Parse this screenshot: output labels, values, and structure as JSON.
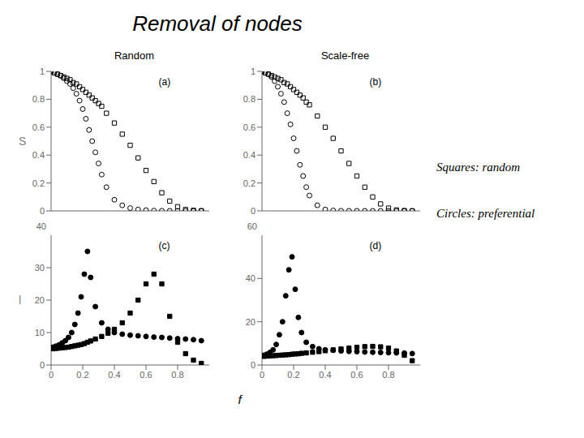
{
  "title": "Removal of nodes",
  "xlabel": "f",
  "annotations": [
    "Squares: random",
    "Circles: preferential"
  ],
  "chart_data": [
    {
      "type": "scatter",
      "title": "Random",
      "ylabel": "S",
      "annotations": [
        "(a)"
      ],
      "grid": false,
      "tick_labels": "y",
      "xlim": [
        0,
        1.0
      ],
      "xticks": [
        0.0,
        0.2,
        0.4,
        0.6,
        0.8
      ],
      "ylim": [
        0,
        1.0
      ],
      "yticks": [
        0.0,
        0.2,
        0.4,
        0.6,
        0.8,
        1.0
      ],
      "x": [
        0.0,
        0.02,
        0.04,
        0.06,
        0.08,
        0.1,
        0.12,
        0.14,
        0.16,
        0.18,
        0.2,
        0.22,
        0.24,
        0.26,
        0.28,
        0.3,
        0.32,
        0.35,
        0.4,
        0.45,
        0.5,
        0.55,
        0.6,
        0.65,
        0.7,
        0.75,
        0.8,
        0.85,
        0.9,
        0.95
      ],
      "series": [
        {
          "marker": "open_circle",
          "color": "#000000",
          "values": [
            1.0,
            0.99,
            0.98,
            0.97,
            0.95,
            0.93,
            0.91,
            0.88,
            0.84,
            0.79,
            0.73,
            0.66,
            0.58,
            0.5,
            0.42,
            0.34,
            0.26,
            0.17,
            0.08,
            0.04,
            0.02,
            0.01,
            0.005,
            0.002,
            0.001,
            0.0005,
            0.0002,
            0.0001,
            5e-05,
            2e-05
          ]
        },
        {
          "marker": "open_square",
          "color": "#000000",
          "values": [
            1.0,
            0.99,
            0.98,
            0.97,
            0.96,
            0.95,
            0.94,
            0.92,
            0.91,
            0.89,
            0.87,
            0.85,
            0.83,
            0.81,
            0.79,
            0.77,
            0.75,
            0.7,
            0.63,
            0.55,
            0.47,
            0.38,
            0.29,
            0.21,
            0.13,
            0.07,
            0.03,
            0.01,
            0.004,
            0.001
          ]
        }
      ]
    },
    {
      "type": "scatter",
      "title": "Scale-free",
      "annotations": [
        "(b)"
      ],
      "grid": false,
      "tick_labels": "y",
      "xlim": [
        0,
        1.0
      ],
      "xticks": [
        0.0,
        0.2,
        0.4,
        0.6,
        0.8
      ],
      "ylim": [
        0,
        1.0
      ],
      "yticks": [
        0.0,
        0.2,
        0.4,
        0.6,
        0.8,
        1.0
      ],
      "x": [
        0.0,
        0.02,
        0.04,
        0.06,
        0.08,
        0.1,
        0.12,
        0.14,
        0.16,
        0.18,
        0.2,
        0.22,
        0.24,
        0.26,
        0.28,
        0.3,
        0.35,
        0.4,
        0.45,
        0.5,
        0.55,
        0.6,
        0.65,
        0.7,
        0.75,
        0.8,
        0.85,
        0.9,
        0.95
      ],
      "series": [
        {
          "marker": "open_circle",
          "color": "#000000",
          "values": [
            1.0,
            0.99,
            0.98,
            0.96,
            0.93,
            0.89,
            0.84,
            0.78,
            0.7,
            0.62,
            0.52,
            0.43,
            0.33,
            0.25,
            0.17,
            0.11,
            0.04,
            0.01,
            0.003,
            0.001,
            0.0005,
            0.0002,
            0.0001,
            5e-05,
            2e-05,
            1e-05,
            5e-06,
            2e-06,
            1e-06
          ]
        },
        {
          "marker": "open_square",
          "color": "#000000",
          "values": [
            1.0,
            0.99,
            0.98,
            0.97,
            0.96,
            0.95,
            0.94,
            0.92,
            0.91,
            0.89,
            0.87,
            0.85,
            0.83,
            0.81,
            0.78,
            0.76,
            0.68,
            0.6,
            0.52,
            0.43,
            0.34,
            0.25,
            0.17,
            0.1,
            0.05,
            0.02,
            0.007,
            0.002,
            0.0005
          ]
        }
      ]
    },
    {
      "type": "scatter",
      "ylabel": "l",
      "annotations": [
        "(c)",
        "40"
      ],
      "grid": false,
      "xlim": [
        0,
        1.0
      ],
      "xticks": [
        0.0,
        0.2,
        0.4,
        0.6,
        0.8
      ],
      "ylim": [
        0,
        40
      ],
      "yticks": [
        0,
        10,
        20,
        30
      ],
      "x": [
        0.01,
        0.03,
        0.05,
        0.07,
        0.09,
        0.11,
        0.13,
        0.15,
        0.17,
        0.19,
        0.21,
        0.23,
        0.25,
        0.28,
        0.32,
        0.36,
        0.4,
        0.45,
        0.5,
        0.55,
        0.6,
        0.65,
        0.7,
        0.75,
        0.8,
        0.85,
        0.9,
        0.95
      ],
      "series": [
        {
          "marker": "circle",
          "color": "#000000",
          "values": [
            5.5,
            5.8,
            6.2,
            6.8,
            7.5,
            8.5,
            10.0,
            12.5,
            16.0,
            21.0,
            28.0,
            35.0,
            27.0,
            18.0,
            13.0,
            11.0,
            10.0,
            9.5,
            9.2,
            9.0,
            8.8,
            8.6,
            8.5,
            8.3,
            8.1,
            8.0,
            7.8,
            7.5
          ]
        },
        {
          "marker": "square",
          "color": "#000000",
          "values": [
            5.0,
            5.1,
            5.2,
            5.3,
            5.4,
            5.5,
            5.7,
            5.9,
            6.1,
            6.3,
            6.6,
            7.0,
            7.4,
            8.0,
            8.8,
            9.8,
            11.0,
            13.0,
            16.0,
            20.0,
            25.0,
            28.0,
            25.0,
            15.0,
            7.0,
            3.5,
            1.5,
            0.5
          ]
        }
      ]
    },
    {
      "type": "scatter",
      "annotations": [
        "(d)",
        "60"
      ],
      "grid": false,
      "xlim": [
        0,
        1.0
      ],
      "xticks": [
        0.0,
        0.2,
        0.4,
        0.6,
        0.8
      ],
      "ylim": [
        0,
        60
      ],
      "yticks": [
        0,
        20,
        40
      ],
      "x": [
        0.01,
        0.03,
        0.05,
        0.07,
        0.09,
        0.11,
        0.13,
        0.15,
        0.17,
        0.19,
        0.21,
        0.23,
        0.25,
        0.28,
        0.32,
        0.36,
        0.4,
        0.45,
        0.5,
        0.55,
        0.6,
        0.65,
        0.7,
        0.75,
        0.8,
        0.85,
        0.9,
        0.95
      ],
      "series": [
        {
          "marker": "circle",
          "color": "#000000",
          "values": [
            4.5,
            5.0,
            5.8,
            7.0,
            9.5,
            14.0,
            20.0,
            32.0,
            44.0,
            50.0,
            35.0,
            22.0,
            15.0,
            10.5,
            8.5,
            7.5,
            7.0,
            6.8,
            6.5,
            6.3,
            6.2,
            6.0,
            5.9,
            5.8,
            5.7,
            5.6,
            5.5,
            5.3
          ]
        },
        {
          "marker": "square",
          "color": "#000000",
          "values": [
            4.0,
            4.1,
            4.2,
            4.3,
            4.4,
            4.5,
            4.6,
            4.7,
            4.8,
            5.0,
            5.1,
            5.2,
            5.4,
            5.6,
            5.9,
            6.2,
            6.6,
            7.0,
            7.4,
            7.8,
            8.2,
            8.5,
            8.6,
            8.4,
            7.8,
            6.5,
            4.5,
            2.0
          ]
        }
      ]
    }
  ]
}
